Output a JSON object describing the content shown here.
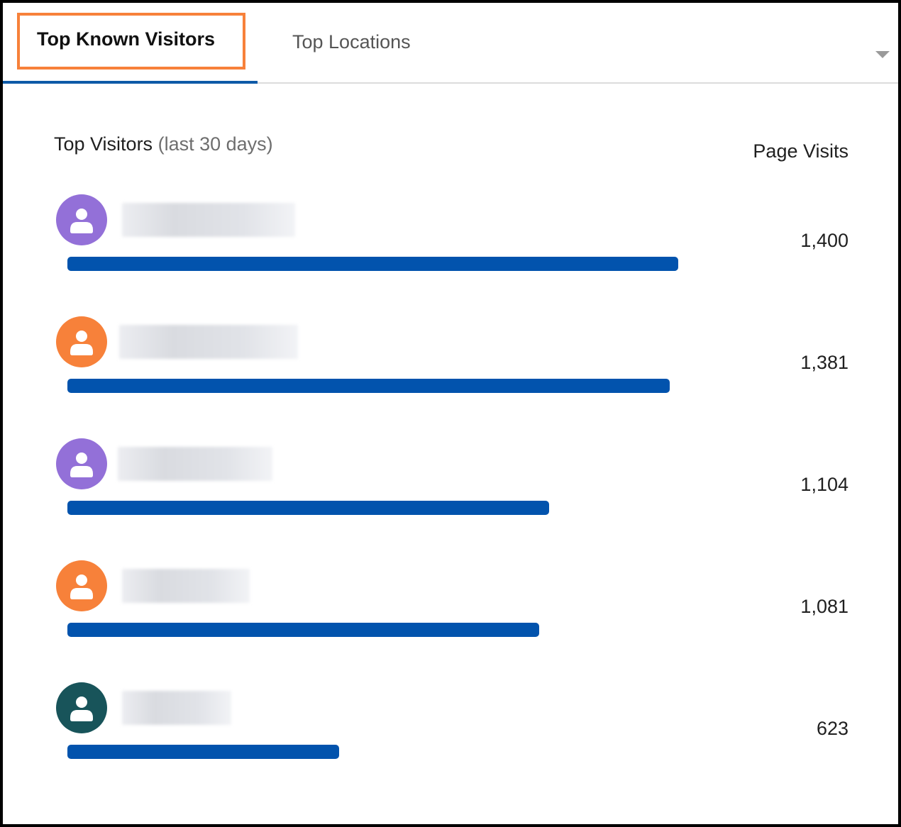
{
  "tabs": [
    {
      "label": "Top Known Visitors",
      "active": true
    },
    {
      "label": "Top Locations",
      "active": false
    }
  ],
  "dropdown_icon": "chevron-down-icon",
  "list": {
    "title": "Top Visitors",
    "subtitle": "(last 30 days)",
    "column_header": "Page Visits"
  },
  "colors": {
    "bar": "#0253ad",
    "highlight": "#f7813a",
    "purple": "#9370d8",
    "orange": "#f7813a",
    "teal": "#18545a"
  },
  "visitors": [
    {
      "value": 1400,
      "value_label": "1,400",
      "avatar_color": "#9370d8"
    },
    {
      "value": 1381,
      "value_label": "1,381",
      "avatar_color": "#f7813a"
    },
    {
      "value": 1104,
      "value_label": "1,104",
      "avatar_color": "#9370d8"
    },
    {
      "value": 1081,
      "value_label": "1,081",
      "avatar_color": "#f7813a"
    },
    {
      "value": 623,
      "value_label": "623",
      "avatar_color": "#18545a"
    }
  ]
}
